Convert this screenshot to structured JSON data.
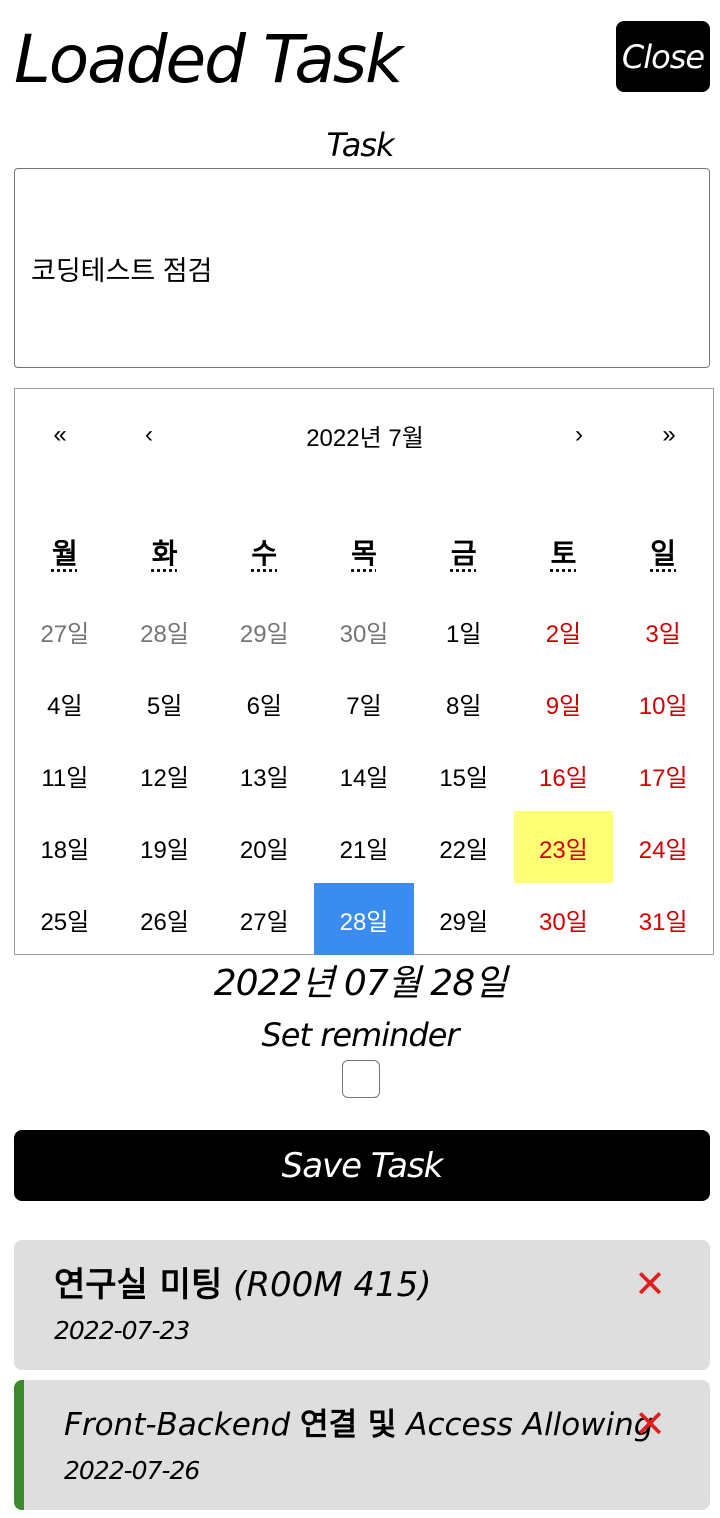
{
  "header": {
    "title": "Loaded Task",
    "close_label": "Close"
  },
  "task": {
    "label": "Task",
    "value": "코딩테스트 점검"
  },
  "calendar": {
    "nav": {
      "prev2": "«",
      "prev": "‹",
      "label": "2022년 7월",
      "next": "›",
      "next2": "»"
    },
    "weekdays": [
      "월",
      "화",
      "수",
      "목",
      "금",
      "토",
      "일"
    ],
    "weeks": [
      [
        "27일",
        "28일",
        "29일",
        "30일",
        "1일",
        "2일",
        "3일"
      ],
      [
        "4일",
        "5일",
        "6일",
        "7일",
        "8일",
        "9일",
        "10일"
      ],
      [
        "11일",
        "12일",
        "13일",
        "14일",
        "15일",
        "16일",
        "17일"
      ],
      [
        "18일",
        "19일",
        "20일",
        "21일",
        "22일",
        "23일",
        "24일"
      ],
      [
        "25일",
        "26일",
        "27일",
        "28일",
        "29일",
        "30일",
        "31일"
      ]
    ],
    "today": "23일",
    "selected": "28일",
    "colors": {
      "weekend": "#d10000",
      "neighbor": "#757575",
      "today_bg": "#ffff76",
      "selected_bg": "#3b8cf0"
    }
  },
  "selected_date": "2022년 07월 28일",
  "reminder": {
    "label": "Set reminder",
    "checked": false
  },
  "save_label": "Save Task",
  "tasks": [
    {
      "title_bold": "연구실 미팅",
      "title_rest": " (R00M 415)",
      "date": "2022-07-23",
      "delete_icon": "✕"
    },
    {
      "title_a": "Front-Backend ",
      "title_bold": "연결 및",
      "title_b": " Access Allowing",
      "date": "2022-07-26",
      "delete_icon": "✕"
    }
  ],
  "accent": {
    "card_bg": "#dedede",
    "card_border": "#3d8a2c",
    "delete": "#e02020"
  }
}
